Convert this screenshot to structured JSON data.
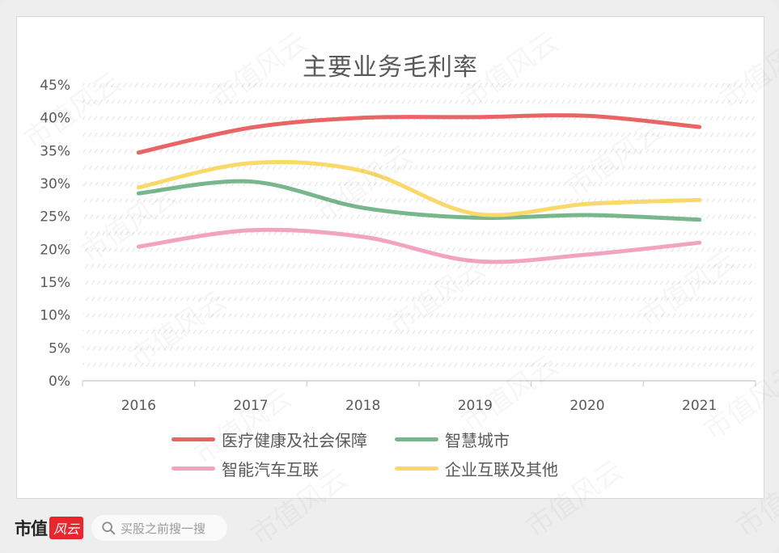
{
  "chart_data": {
    "type": "line",
    "title": "主要业务毛利率",
    "xlabel": "",
    "ylabel": "",
    "categories": [
      "2016",
      "2017",
      "2018",
      "2019",
      "2020",
      "2021"
    ],
    "ylim": [
      0,
      45
    ],
    "yticks": [
      "0%",
      "5%",
      "10%",
      "15%",
      "20%",
      "25%",
      "30%",
      "35%",
      "40%",
      "45%"
    ],
    "smooth": true,
    "grid": true,
    "legend_position": "bottom",
    "series": [
      {
        "name": "医疗健康及社会保障",
        "color": "#e96565",
        "values": [
          34.7,
          38.5,
          40.0,
          40.1,
          40.3,
          38.6
        ]
      },
      {
        "name": "智慧城市",
        "color": "#78b68b",
        "values": [
          28.5,
          30.3,
          26.3,
          24.8,
          25.2,
          24.5
        ]
      },
      {
        "name": "智能汽车互联",
        "color": "#f2a3c0",
        "values": [
          20.4,
          22.9,
          21.9,
          18.2,
          19.2,
          21.0
        ]
      },
      {
        "name": "企业互联及其他",
        "color": "#f9d96a",
        "values": [
          29.4,
          33.1,
          31.9,
          25.4,
          26.9,
          27.5
        ]
      }
    ]
  },
  "legend": {
    "items": [
      {
        "label": "医疗健康及社会保障",
        "color": "#e96565"
      },
      {
        "label": "智慧城市",
        "color": "#78b68b"
      },
      {
        "label": "智能汽车互联",
        "color": "#f2a3c0"
      },
      {
        "label": "企业互联及其他",
        "color": "#f9d96a"
      }
    ]
  },
  "footer": {
    "brand": "市值",
    "brand_badge": "风云",
    "search_placeholder": "买股之前搜一搜",
    "search_icon": "search-icon"
  },
  "watermark": "市值风云"
}
